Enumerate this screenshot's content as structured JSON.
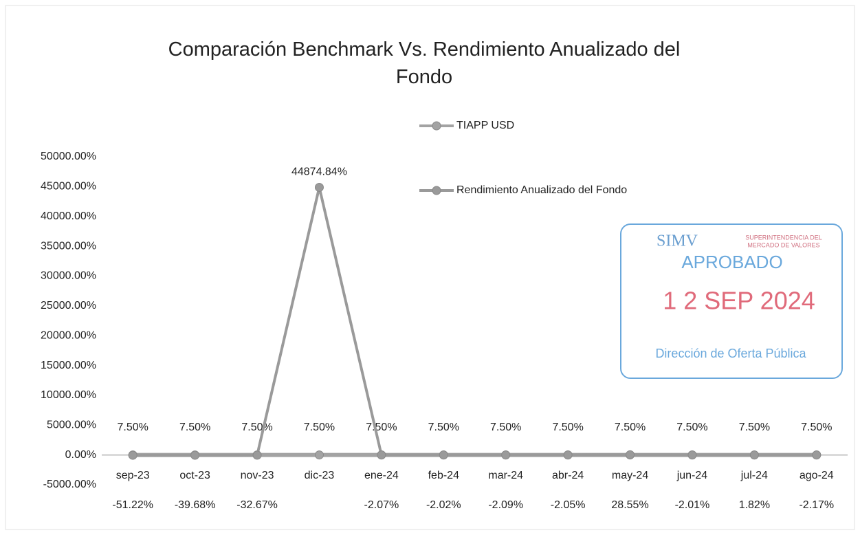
{
  "chart_data": {
    "type": "line",
    "title": "Comparación Benchmark Vs. Rendimiento Anualizado del Fondo",
    "categories": [
      "sep-23",
      "oct-23",
      "nov-23",
      "dic-23",
      "ene-24",
      "feb-24",
      "mar-24",
      "abr-24",
      "may-24",
      "jun-24",
      "jul-24",
      "ago-24"
    ],
    "series": [
      {
        "name": "TIAPP USD",
        "color": "#a3a3a3",
        "values": [
          7.5,
          7.5,
          7.5,
          7.5,
          7.5,
          7.5,
          7.5,
          7.5,
          7.5,
          7.5,
          7.5,
          7.5
        ],
        "value_labels": [
          "7.50%",
          "7.50%",
          "7.50%",
          "7.50%",
          "7.50%",
          "7.50%",
          "7.50%",
          "7.50%",
          "7.50%",
          "7.50%",
          "7.50%",
          "7.50%"
        ]
      },
      {
        "name": "Rendimiento Anualizado del Fondo",
        "color": "#9a9a9a",
        "values": [
          -51.22,
          -39.68,
          -32.67,
          44874.84,
          -2.07,
          -2.02,
          -2.09,
          -2.05,
          28.55,
          -2.01,
          1.82,
          -2.17
        ],
        "value_labels": [
          "-51.22%",
          "-39.68%",
          "-32.67%",
          "44874.84%",
          "-2.07%",
          "-2.02%",
          "-2.09%",
          "-2.05%",
          "28.55%",
          "-2.01%",
          "1.82%",
          "-2.17%"
        ]
      }
    ],
    "ylim": [
      -5000,
      50000
    ],
    "yticks": [
      {
        "value": -5000,
        "label": "-5000.00%"
      },
      {
        "value": 0,
        "label": "0.00%"
      },
      {
        "value": 5000,
        "label": "5000.00%"
      },
      {
        "value": 10000,
        "label": "10000.00%"
      },
      {
        "value": 15000,
        "label": "15000.00%"
      },
      {
        "value": 20000,
        "label": "20000.00%"
      },
      {
        "value": 25000,
        "label": "25000.00%"
      },
      {
        "value": 30000,
        "label": "30000.00%"
      },
      {
        "value": 35000,
        "label": "35000.00%"
      },
      {
        "value": 40000,
        "label": "40000.00%"
      },
      {
        "value": 45000,
        "label": "45000.00%"
      },
      {
        "value": 50000,
        "label": "50000.00%"
      }
    ],
    "grid": false,
    "legend": "top"
  },
  "stamp": {
    "brand": "SIMV",
    "org_line1": "SUPERINTENDENCIA DEL",
    "org_line2": "MERCADO DE VALORES",
    "status": "APROBADO",
    "date": "1 2 SEP 2024",
    "office": "Dirección de Oferta Pública"
  }
}
